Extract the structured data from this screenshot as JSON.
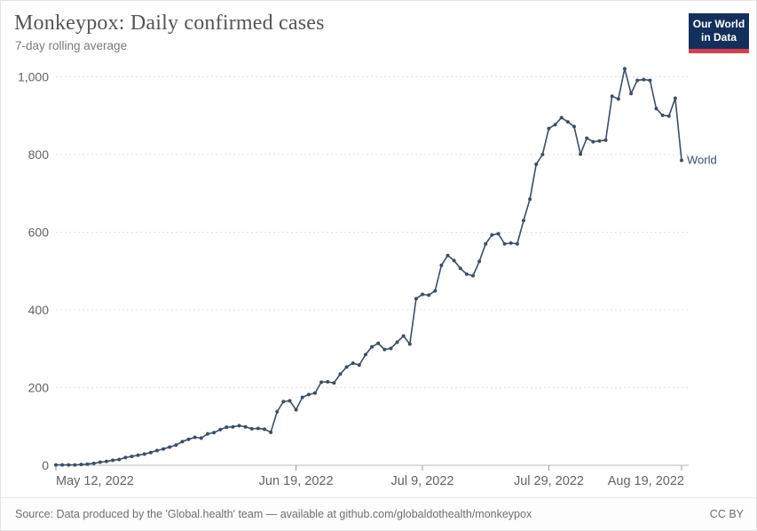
{
  "header": {
    "title": "Monkeypox: Daily confirmed cases",
    "subtitle": "7-day rolling average",
    "logo": {
      "line1": "Our World",
      "line2": "in Data",
      "bg_color": "#12305b",
      "accent_color": "#d63e4e"
    }
  },
  "footer": {
    "source": "Source: Data produced by the 'Global.health' team — available at github.com/globaldothealth/monkeypox",
    "license": "CC BY"
  },
  "chart_data": {
    "type": "line",
    "title": "Monkeypox: Daily confirmed cases",
    "subtitle": "7-day rolling average",
    "xlabel": "",
    "ylabel": "",
    "ylim": [
      0,
      1050
    ],
    "grid": true,
    "marker": "circle",
    "legend_position": "end-of-line",
    "line_color": "#3d4e64",
    "grid_color": "#e0e0e0",
    "axis_color": "#bbbbbb",
    "tick_label_color": "#636363",
    "x_start_date": "2022-05-12",
    "x_end_date": "2022-08-19",
    "x_ticks": [
      {
        "day": 0,
        "label": "May 12, 2022"
      },
      {
        "day": 38,
        "label": "Jun 19, 2022"
      },
      {
        "day": 58,
        "label": "Jul 9, 2022"
      },
      {
        "day": 78,
        "label": "Jul 29, 2022"
      },
      {
        "day": 99,
        "label": "Aug 19, 2022"
      }
    ],
    "y_ticks": [
      {
        "value": 0,
        "label": "0"
      },
      {
        "value": 200,
        "label": "200"
      },
      {
        "value": 400,
        "label": "400"
      },
      {
        "value": 600,
        "label": "600"
      },
      {
        "value": 800,
        "label": "800"
      },
      {
        "value": 1000,
        "label": "1,000"
      }
    ],
    "series": [
      {
        "name": "World",
        "color": "#3d4e64",
        "values": [
          1,
          1,
          1,
          1,
          2,
          3,
          5,
          8,
          10,
          13,
          15,
          20,
          23,
          26,
          29,
          33,
          38,
          42,
          47,
          52,
          61,
          67,
          72,
          70,
          81,
          84,
          92,
          98,
          99,
          102,
          99,
          94,
          95,
          93,
          85,
          138,
          164,
          166,
          143,
          175,
          182,
          186,
          214,
          215,
          212,
          235,
          253,
          263,
          258,
          285,
          305,
          314,
          298,
          301,
          317,
          333,
          312,
          429,
          440,
          438,
          449,
          515,
          540,
          527,
          507,
          492,
          488,
          525,
          570,
          593,
          596,
          570,
          572,
          570,
          630,
          685,
          775,
          800,
          867,
          877,
          895,
          884,
          872,
          801,
          842,
          833,
          835,
          837,
          950,
          943,
          1021,
          957,
          991,
          993,
          991,
          918,
          901,
          899,
          945,
          785
        ]
      }
    ]
  }
}
